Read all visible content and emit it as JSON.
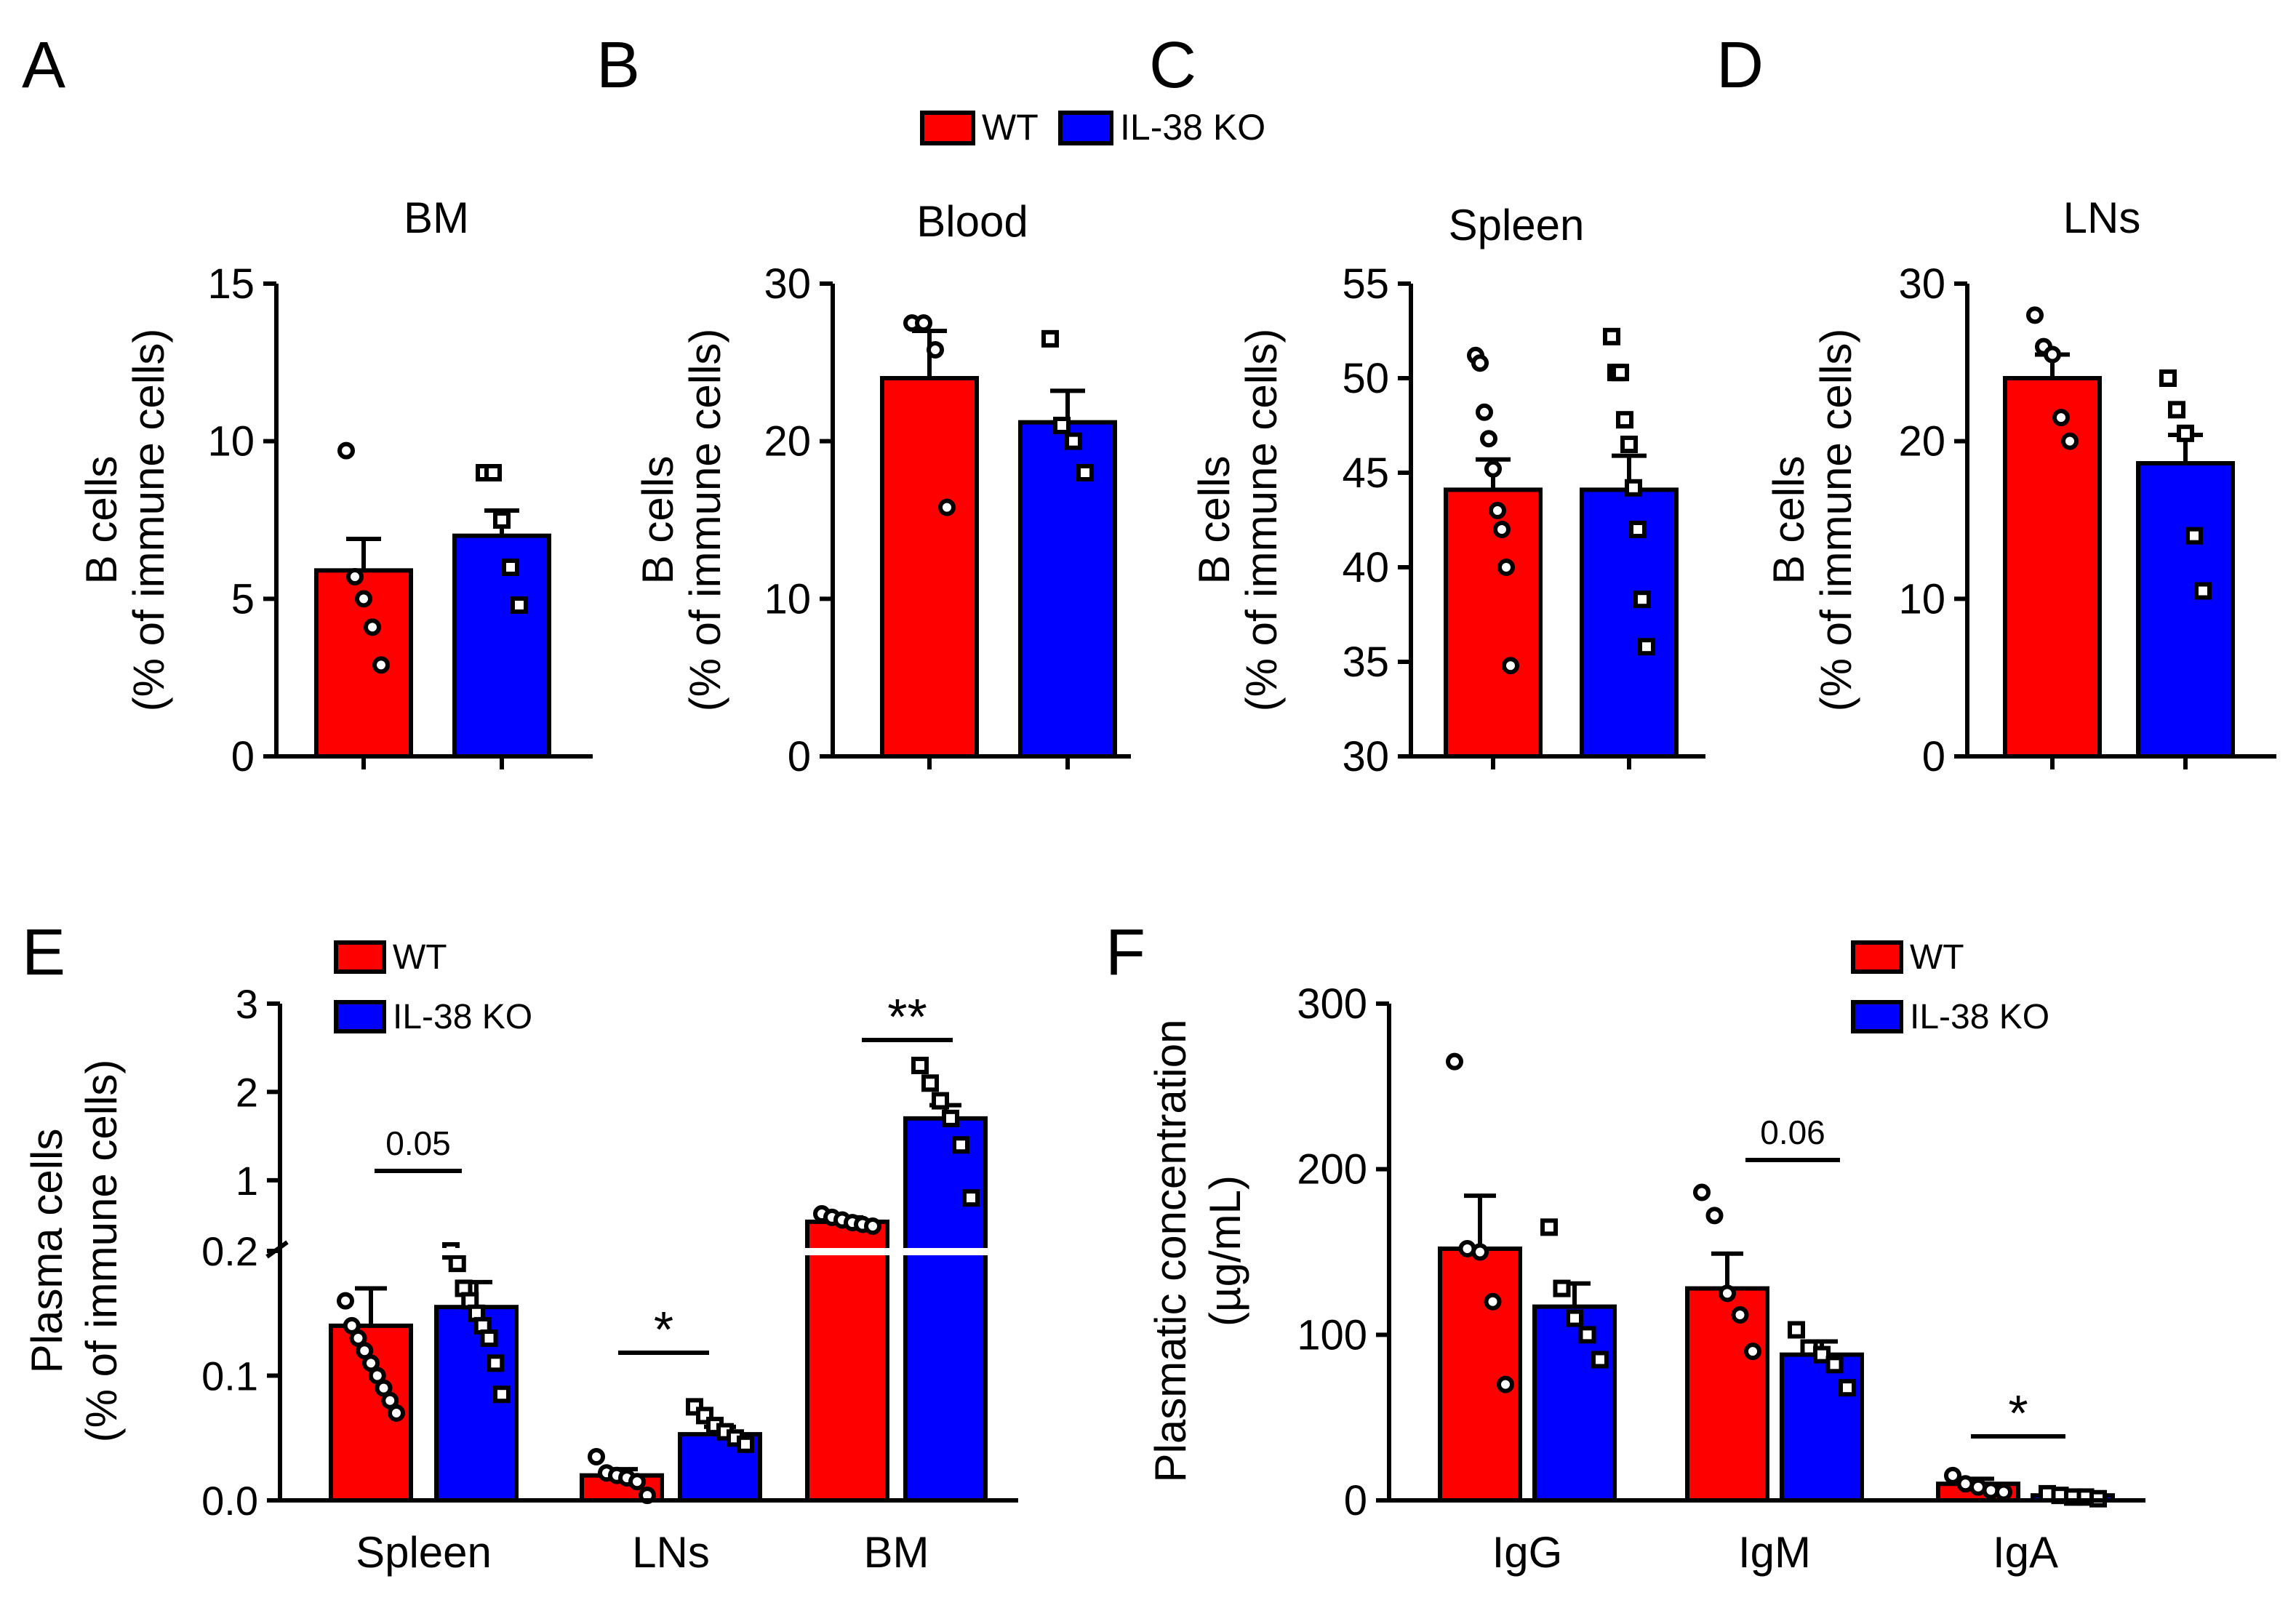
{
  "colors": {
    "wt": "#ff0000",
    "ko": "#0000ff",
    "axis": "#000000"
  },
  "legend": {
    "wt": "WT",
    "ko": "IL-38 KO"
  },
  "chart_data": [
    {
      "id": "A",
      "type": "bar",
      "title": "BM",
      "ylabel_line1": "B cells",
      "ylabel_line2": "(% of immune cells)",
      "ylim": [
        0,
        15
      ],
      "yticks": [
        0,
        5,
        10,
        15
      ],
      "series": [
        {
          "name": "WT",
          "mean": 5.9,
          "sem": 1.0,
          "points": [
            9.7,
            5.7,
            5.0,
            4.1,
            2.9
          ]
        },
        {
          "name": "IL-38 KO",
          "mean": 7.0,
          "sem": 0.8,
          "points": [
            9.0,
            9.0,
            7.5,
            6.0,
            4.8
          ]
        }
      ]
    },
    {
      "id": "B",
      "type": "bar",
      "title": "Blood",
      "ylabel_line1": "B cells",
      "ylabel_line2": "(% of immune cells)",
      "ylim": [
        0,
        30
      ],
      "yticks": [
        0,
        10,
        20,
        30
      ],
      "series": [
        {
          "name": "WT",
          "mean": 24.0,
          "sem": 3.0,
          "points": [
            27.5,
            27.5,
            25.8,
            15.8
          ]
        },
        {
          "name": "IL-38 KO",
          "mean": 21.2,
          "sem": 2.0,
          "points": [
            26.5,
            21.0,
            20.0,
            18.0
          ]
        }
      ]
    },
    {
      "id": "C",
      "type": "bar",
      "title": "Spleen",
      "ylabel_line1": "B cells",
      "ylabel_line2": "(% of immune cells)",
      "ylim": [
        30,
        55
      ],
      "yticks": [
        30,
        35,
        40,
        45,
        50,
        55
      ],
      "series": [
        {
          "name": "WT",
          "mean": 44.1,
          "sem": 1.6,
          "points": [
            51.2,
            50.8,
            48.2,
            46.8,
            45.2,
            43.0,
            42.0,
            40.0,
            34.8
          ]
        },
        {
          "name": "IL-38 KO",
          "mean": 44.1,
          "sem": 1.8,
          "points": [
            52.2,
            50.3,
            50.3,
            47.8,
            46.5,
            44.2,
            42.0,
            38.3,
            35.8
          ]
        }
      ]
    },
    {
      "id": "D",
      "type": "bar",
      "title": "LNs",
      "ylabel_line1": "B cells",
      "ylabel_line2": "(% of immune cells)",
      "ylim": [
        0,
        30
      ],
      "yticks": [
        0,
        10,
        20,
        30
      ],
      "series": [
        {
          "name": "WT",
          "mean": 24.0,
          "sem": 1.5,
          "points": [
            28.0,
            26.0,
            25.5,
            21.5,
            20.0
          ]
        },
        {
          "name": "IL-38 KO",
          "mean": 18.6,
          "sem": 1.8,
          "points": [
            24.0,
            22.0,
            20.5,
            14.0,
            10.5
          ]
        }
      ]
    },
    {
      "id": "E",
      "type": "bar",
      "title": "",
      "ylabel_line1": "Plasma cells",
      "ylabel_line2": "(% of immune cells)",
      "axis_break": true,
      "yticks_lower": [
        "0.0",
        "0.1",
        "0.2"
      ],
      "yticks_upper": [
        "1",
        "2",
        "3"
      ],
      "categories": [
        "Spleen",
        "LNs",
        "BM"
      ],
      "series": [
        {
          "name": "WT",
          "means": [
            0.14,
            0.02,
            0.53
          ],
          "sems": [
            0.03,
            0.005,
            0.05
          ],
          "points": [
            [
              0.16,
              0.14,
              0.13,
              0.12,
              0.11,
              0.1,
              0.09,
              0.08,
              0.07
            ],
            [
              0.035,
              0.022,
              0.02,
              0.018,
              0.015,
              0.004
            ],
            [
              0.62,
              0.58,
              0.55,
              0.52,
              0.5,
              0.48
            ]
          ]
        },
        {
          "name": "IL-38 KO",
          "means": [
            0.155,
            0.053,
            1.7
          ],
          "sems": [
            0.02,
            0.006,
            0.15
          ],
          "points": [
            [
              0.2,
              0.19,
              0.17,
              0.16,
              0.15,
              0.14,
              0.13,
              0.11,
              0.085
            ],
            [
              0.075,
              0.068,
              0.06,
              0.055,
              0.05,
              0.045
            ],
            [
              2.3,
              2.1,
              1.9,
              1.7,
              1.4,
              0.8
            ]
          ]
        }
      ],
      "annotations": [
        "0.05",
        "*",
        "**"
      ]
    },
    {
      "id": "F",
      "type": "bar",
      "title": "",
      "ylabel_line1": "Plasmatic concentration",
      "ylabel_line2": "(µg/mL)",
      "ylim": [
        0,
        300
      ],
      "yticks": [
        0,
        100,
        200,
        300
      ],
      "categories": [
        "IgG",
        "IgM",
        "IgA"
      ],
      "series": [
        {
          "name": "WT",
          "means": [
            152,
            128,
            10
          ],
          "sems": [
            32,
            21,
            3
          ],
          "points": [
            [
              265,
              152,
              150,
              120,
              70
            ],
            [
              186,
              172,
              125,
              112,
              90
            ],
            [
              15,
              10,
              8,
              6,
              5
            ]
          ]
        },
        {
          "name": "IL-38 KO",
          "means": [
            117,
            88,
            3
          ],
          "sems": [
            14,
            8,
            1
          ],
          "points": [
            [
              165,
              128,
              110,
              100,
              85
            ],
            [
              103,
              92,
              88,
              82,
              68
            ],
            [
              4,
              3,
              2,
              2,
              1
            ]
          ]
        }
      ],
      "annotations": [
        "0.06",
        "*"
      ]
    }
  ],
  "panel_letters": [
    "A",
    "B",
    "C",
    "D",
    "E",
    "F"
  ]
}
